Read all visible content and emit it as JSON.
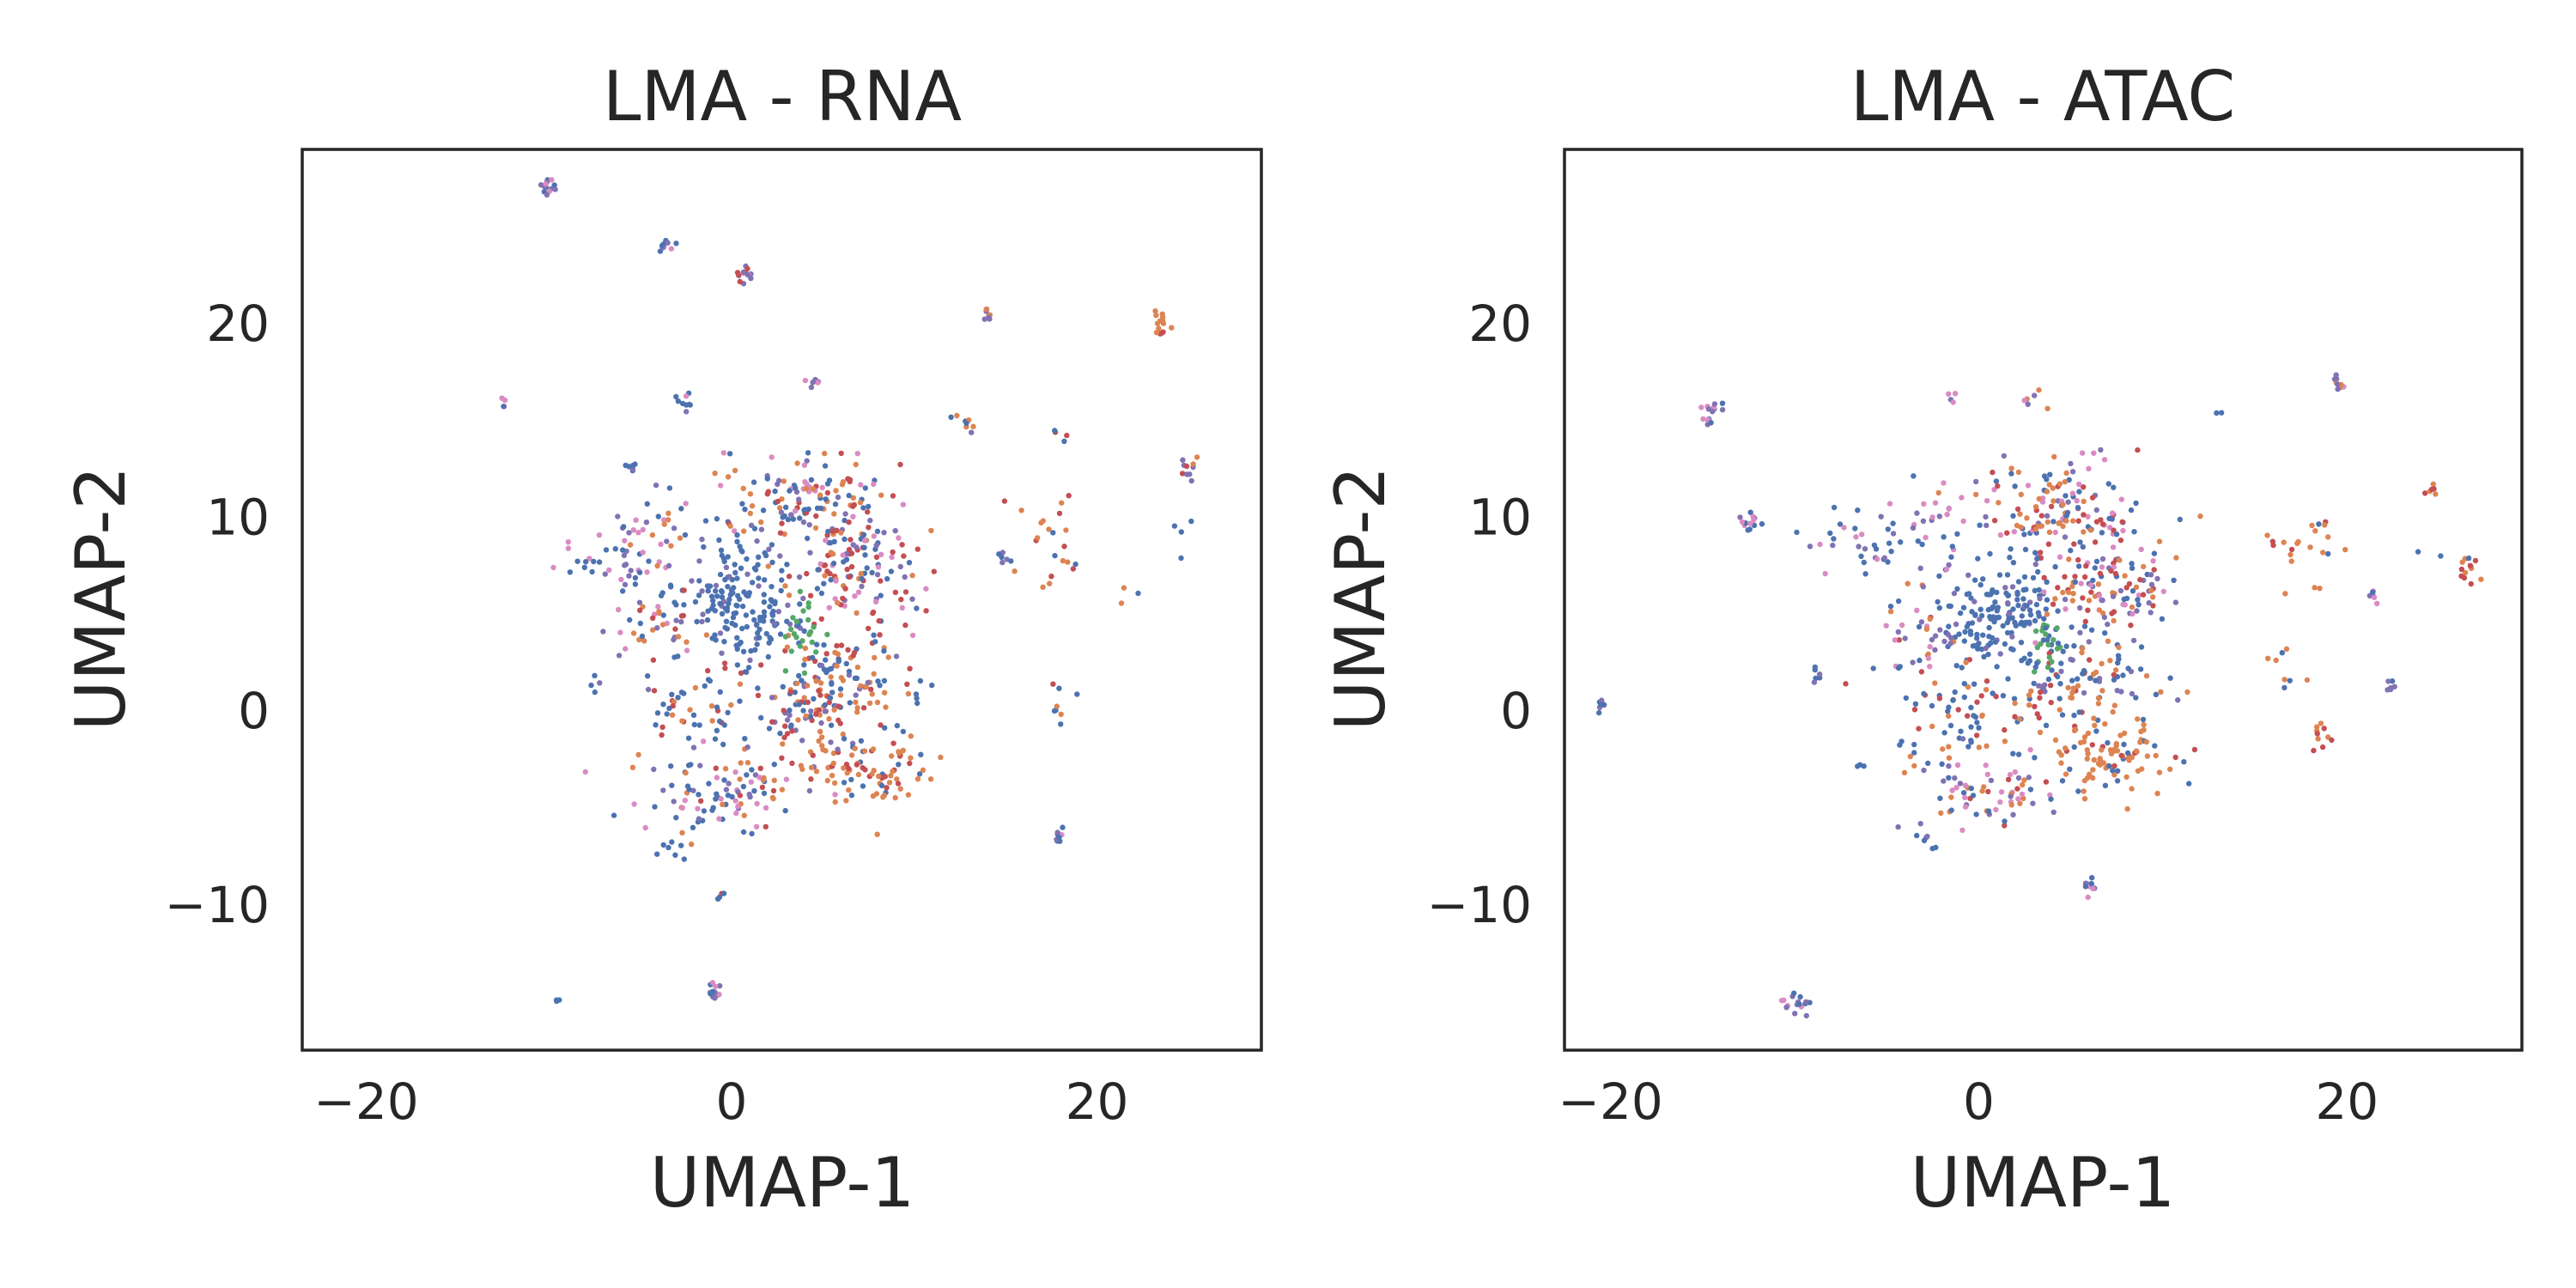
{
  "figure": {
    "background": "#ffffff",
    "frame_color": "#262626"
  },
  "cluster_colors": [
    "#4c72b0",
    "#dd8452",
    "#55a868",
    "#c44e52",
    "#8172b3",
    "#da8bc3"
  ],
  "chart_data": [
    {
      "type": "scatter",
      "title": "LMA - RNA",
      "xlabel": "UMAP-1",
      "ylabel": "UMAP-2",
      "xlim": [
        -23.5,
        29
      ],
      "ylim": [
        -17.5,
        29
      ],
      "xticks": [
        {
          "value": -20,
          "label": "−20"
        },
        {
          "value": 0,
          "label": "0"
        },
        {
          "value": 20,
          "label": "20"
        }
      ],
      "yticks": [
        {
          "value": -10,
          "label": "−10"
        },
        {
          "value": 0,
          "label": "0"
        },
        {
          "value": 10,
          "label": "10"
        },
        {
          "value": 20,
          "label": "20"
        }
      ],
      "grid": false,
      "legend": null,
      "clusters": [
        {
          "x": 0.5,
          "y": 5.5,
          "sx": 1.6,
          "sy": 1.6,
          "n": 170,
          "colors": [
            0,
            0,
            0,
            0,
            0,
            0,
            4
          ]
        },
        {
          "x": 4.0,
          "y": 10.5,
          "sx": 2.4,
          "sy": 1.3,
          "n": 150,
          "colors": [
            1,
            1,
            0,
            0,
            3,
            4,
            5
          ]
        },
        {
          "x": 7.0,
          "y": 7.0,
          "sx": 1.8,
          "sy": 1.4,
          "n": 120,
          "colors": [
            1,
            3,
            3,
            4,
            5,
            0
          ]
        },
        {
          "x": 6.0,
          "y": 1.5,
          "sx": 1.8,
          "sy": 1.3,
          "n": 110,
          "colors": [
            1,
            1,
            3,
            0,
            0,
            4
          ]
        },
        {
          "x": 7.5,
          "y": -3.0,
          "sx": 1.8,
          "sy": 1.0,
          "n": 90,
          "colors": [
            1,
            1,
            1,
            1,
            3,
            0
          ]
        },
        {
          "x": 3.5,
          "y": 0.0,
          "sx": 1.2,
          "sy": 1.2,
          "n": 60,
          "colors": [
            0,
            1,
            3,
            4
          ]
        },
        {
          "x": -1.5,
          "y": 0.5,
          "sx": 1.5,
          "sy": 1.2,
          "n": 50,
          "colors": [
            0,
            0,
            0,
            1,
            3
          ]
        },
        {
          "x": -2.0,
          "y": -4.5,
          "sx": 2.0,
          "sy": 1.3,
          "n": 60,
          "colors": [
            0,
            0,
            1,
            4,
            5
          ]
        },
        {
          "x": 1.5,
          "y": -4.0,
          "sx": 1.6,
          "sy": 1.0,
          "n": 45,
          "colors": [
            0,
            1,
            3,
            4,
            5
          ]
        },
        {
          "x": 4.0,
          "y": 4.0,
          "sx": 0.5,
          "sy": 0.9,
          "n": 28,
          "colors": [
            2,
            2,
            2,
            0
          ]
        },
        {
          "x": -4.0,
          "y": 4.5,
          "sx": 1.5,
          "sy": 1.5,
          "n": 50,
          "colors": [
            0,
            1,
            4,
            5,
            3
          ]
        },
        {
          "x": -6.5,
          "y": 8.0,
          "sx": 1.5,
          "sy": 1.2,
          "n": 35,
          "colors": [
            0,
            0,
            4,
            5
          ]
        },
        {
          "x": -4.0,
          "y": 9.5,
          "sx": 1.2,
          "sy": 1.3,
          "n": 25,
          "colors": [
            0,
            1,
            4,
            5
          ]
        },
        {
          "x": 17.5,
          "y": 9.0,
          "sx": 1.2,
          "sy": 1.2,
          "n": 22,
          "colors": [
            1,
            1,
            3,
            0
          ]
        },
        {
          "x": -10.0,
          "y": 27.0,
          "sx": 0.25,
          "sy": 0.25,
          "n": 14,
          "colors": [
            4,
            5,
            0
          ]
        },
        {
          "x": -3.5,
          "y": 24.0,
          "sx": 0.2,
          "sy": 0.2,
          "n": 10,
          "colors": [
            0,
            4,
            5
          ]
        },
        {
          "x": 0.8,
          "y": 22.5,
          "sx": 0.25,
          "sy": 0.25,
          "n": 14,
          "colors": [
            5,
            4,
            3
          ]
        },
        {
          "x": 14.0,
          "y": 20.5,
          "sx": 0.2,
          "sy": 0.2,
          "n": 8,
          "colors": [
            1,
            4
          ]
        },
        {
          "x": 23.5,
          "y": 20.0,
          "sx": 0.3,
          "sy": 0.3,
          "n": 14,
          "colors": [
            1,
            1,
            3
          ]
        },
        {
          "x": -2.5,
          "y": 16.0,
          "sx": 0.2,
          "sy": 0.2,
          "n": 9,
          "colors": [
            4,
            5,
            0
          ]
        },
        {
          "x": 4.5,
          "y": 17.0,
          "sx": 0.2,
          "sy": 0.2,
          "n": 7,
          "colors": [
            4,
            5,
            1
          ]
        },
        {
          "x": 12.5,
          "y": 15.0,
          "sx": 0.4,
          "sy": 0.3,
          "n": 8,
          "colors": [
            1,
            0,
            4
          ]
        },
        {
          "x": 25.0,
          "y": 12.5,
          "sx": 0.3,
          "sy": 0.4,
          "n": 10,
          "colors": [
            1,
            4,
            3
          ]
        },
        {
          "x": -5.5,
          "y": 12.5,
          "sx": 0.2,
          "sy": 0.2,
          "n": 6,
          "colors": [
            0,
            4
          ]
        },
        {
          "x": -1.0,
          "y": -14.5,
          "sx": 0.25,
          "sy": 0.25,
          "n": 12,
          "colors": [
            0,
            4,
            5
          ]
        },
        {
          "x": 18.0,
          "y": -6.5,
          "sx": 0.2,
          "sy": 0.25,
          "n": 9,
          "colors": [
            0,
            4,
            5
          ]
        },
        {
          "x": 18.0,
          "y": 0.5,
          "sx": 0.4,
          "sy": 0.8,
          "n": 8,
          "colors": [
            0,
            1,
            3
          ]
        },
        {
          "x": -12.5,
          "y": 16.0,
          "sx": 0.15,
          "sy": 0.3,
          "n": 4,
          "colors": [
            5,
            0
          ]
        },
        {
          "x": 15.0,
          "y": 8.0,
          "sx": 0.4,
          "sy": 0.3,
          "n": 6,
          "colors": [
            0,
            4
          ]
        },
        {
          "x": -0.5,
          "y": -9.5,
          "sx": 0.2,
          "sy": 0.2,
          "n": 4,
          "colors": [
            0,
            3
          ]
        },
        {
          "x": -9.5,
          "y": -15.0,
          "sx": 0.15,
          "sy": 0.15,
          "n": 3,
          "colors": [
            0
          ]
        },
        {
          "x": 21.5,
          "y": 6.0,
          "sx": 0.4,
          "sy": 0.3,
          "n": 3,
          "colors": [
            1,
            0
          ]
        },
        {
          "x": 24.5,
          "y": 9.5,
          "sx": 1.0,
          "sy": 0.8,
          "n": 4,
          "colors": [
            0
          ]
        },
        {
          "x": 10.5,
          "y": 1.0,
          "sx": 0.4,
          "sy": 0.6,
          "n": 5,
          "colors": [
            0
          ]
        },
        {
          "x": 18.0,
          "y": 14.0,
          "sx": 0.2,
          "sy": 0.3,
          "n": 4,
          "colors": [
            3,
            0
          ]
        },
        {
          "x": -7.5,
          "y": 1.5,
          "sx": 0.3,
          "sy": 0.3,
          "n": 4,
          "colors": [
            0,
            4
          ]
        },
        {
          "x": -3.0,
          "y": -7.0,
          "sx": 0.5,
          "sy": 0.4,
          "n": 5,
          "colors": [
            3,
            0
          ]
        }
      ]
    },
    {
      "type": "scatter",
      "title": "LMA - ATAC",
      "xlabel": "UMAP-1",
      "ylabel": "UMAP-2",
      "xlim": [
        -22.5,
        29.5
      ],
      "ylim": [
        -17.5,
        29
      ],
      "xticks": [
        {
          "value": -20,
          "label": "−20"
        },
        {
          "value": 0,
          "label": "0"
        },
        {
          "value": 20,
          "label": "20"
        }
      ],
      "yticks": [
        {
          "value": -10,
          "label": "−10"
        },
        {
          "value": 0,
          "label": "0"
        },
        {
          "value": 10,
          "label": "10"
        },
        {
          "value": 20,
          "label": "20"
        }
      ],
      "grid": false,
      "legend": null,
      "clusters": [
        {
          "x": 1.0,
          "y": 5.0,
          "sx": 1.6,
          "sy": 1.5,
          "n": 170,
          "colors": [
            0,
            0,
            0,
            0,
            0,
            0,
            4
          ]
        },
        {
          "x": 4.5,
          "y": 10.5,
          "sx": 2.4,
          "sy": 1.3,
          "n": 150,
          "colors": [
            1,
            1,
            0,
            0,
            3,
            4,
            5
          ]
        },
        {
          "x": 7.0,
          "y": 6.5,
          "sx": 1.9,
          "sy": 1.4,
          "n": 120,
          "colors": [
            1,
            3,
            3,
            4,
            5,
            0
          ]
        },
        {
          "x": 5.5,
          "y": 1.5,
          "sx": 1.8,
          "sy": 1.3,
          "n": 110,
          "colors": [
            1,
            1,
            3,
            0,
            0,
            4
          ]
        },
        {
          "x": 7.5,
          "y": -2.5,
          "sx": 1.8,
          "sy": 0.9,
          "n": 90,
          "colors": [
            1,
            1,
            1,
            1,
            3,
            0
          ]
        },
        {
          "x": -1.0,
          "y": 0.0,
          "sx": 1.6,
          "sy": 1.3,
          "n": 55,
          "colors": [
            0,
            0,
            0,
            1,
            3
          ]
        },
        {
          "x": 1.5,
          "y": -4.0,
          "sx": 1.5,
          "sy": 1.0,
          "n": 45,
          "colors": [
            0,
            1,
            3,
            4,
            5
          ]
        },
        {
          "x": -2.0,
          "y": -4.0,
          "sx": 1.4,
          "sy": 1.3,
          "n": 40,
          "colors": [
            0,
            0,
            1,
            4,
            5
          ]
        },
        {
          "x": 3.8,
          "y": 3.8,
          "sx": 0.4,
          "sy": 0.8,
          "n": 26,
          "colors": [
            2,
            2,
            2,
            0
          ]
        },
        {
          "x": -3.5,
          "y": 4.0,
          "sx": 1.3,
          "sy": 1.3,
          "n": 40,
          "colors": [
            0,
            1,
            4,
            5,
            3
          ]
        },
        {
          "x": -6.5,
          "y": 8.5,
          "sx": 1.8,
          "sy": 1.0,
          "n": 35,
          "colors": [
            0,
            0,
            4,
            5
          ]
        },
        {
          "x": -2.5,
          "y": 10.0,
          "sx": 1.0,
          "sy": 1.0,
          "n": 20,
          "colors": [
            0,
            4,
            5
          ]
        },
        {
          "x": 17.5,
          "y": 8.5,
          "sx": 1.3,
          "sy": 1.3,
          "n": 22,
          "colors": [
            1,
            1,
            3,
            0
          ]
        },
        {
          "x": -14.5,
          "y": 15.5,
          "sx": 0.3,
          "sy": 0.3,
          "n": 16,
          "colors": [
            4,
            5,
            0
          ]
        },
        {
          "x": -12.5,
          "y": 9.8,
          "sx": 0.25,
          "sy": 0.25,
          "n": 14,
          "colors": [
            4,
            5,
            0
          ]
        },
        {
          "x": -20.5,
          "y": 0.2,
          "sx": 0.15,
          "sy": 0.2,
          "n": 8,
          "colors": [
            0,
            4
          ]
        },
        {
          "x": -10.0,
          "y": -15.0,
          "sx": 0.35,
          "sy": 0.35,
          "n": 16,
          "colors": [
            0,
            4,
            5
          ]
        },
        {
          "x": 19.5,
          "y": 17.0,
          "sx": 0.2,
          "sy": 0.4,
          "n": 9,
          "colors": [
            1,
            4,
            5
          ]
        },
        {
          "x": 26.5,
          "y": 7.5,
          "sx": 0.3,
          "sy": 0.4,
          "n": 12,
          "colors": [
            1,
            1,
            3
          ]
        },
        {
          "x": 24.5,
          "y": 11.5,
          "sx": 0.2,
          "sy": 0.2,
          "n": 6,
          "colors": [
            1,
            3
          ]
        },
        {
          "x": 21.5,
          "y": 6.0,
          "sx": 0.2,
          "sy": 0.2,
          "n": 6,
          "colors": [
            0,
            4,
            5
          ]
        },
        {
          "x": 22.5,
          "y": 1.3,
          "sx": 0.2,
          "sy": 0.2,
          "n": 6,
          "colors": [
            0,
            4
          ]
        },
        {
          "x": 18.5,
          "y": -1.0,
          "sx": 0.3,
          "sy": 0.6,
          "n": 10,
          "colors": [
            1,
            1,
            3
          ]
        },
        {
          "x": 6.0,
          "y": -9.0,
          "sx": 0.2,
          "sy": 0.25,
          "n": 9,
          "colors": [
            0,
            4,
            5
          ]
        },
        {
          "x": -9.0,
          "y": 2.0,
          "sx": 0.2,
          "sy": 0.3,
          "n": 6,
          "colors": [
            0,
            4
          ]
        },
        {
          "x": 3.0,
          "y": 16.0,
          "sx": 0.4,
          "sy": 0.3,
          "n": 6,
          "colors": [
            4,
            5,
            1
          ]
        },
        {
          "x": -1.5,
          "y": 16.3,
          "sx": 0.2,
          "sy": 0.2,
          "n": 4,
          "colors": [
            4,
            5
          ]
        },
        {
          "x": 16.0,
          "y": 3.0,
          "sx": 0.5,
          "sy": 0.4,
          "n": 4,
          "colors": [
            1,
            0
          ]
        },
        {
          "x": 13.0,
          "y": 15.3,
          "sx": 0.1,
          "sy": 0.1,
          "n": 2,
          "colors": [
            0
          ]
        },
        {
          "x": -3.0,
          "y": -6.5,
          "sx": 0.3,
          "sy": 0.3,
          "n": 4,
          "colors": [
            0,
            4
          ]
        },
        {
          "x": -6.5,
          "y": -3.0,
          "sx": 0.2,
          "sy": 0.2,
          "n": 3,
          "colors": [
            0
          ]
        },
        {
          "x": 25.5,
          "y": 8.5,
          "sx": 0.6,
          "sy": 0.5,
          "n": 3,
          "colors": [
            0
          ]
        },
        {
          "x": 17.0,
          "y": 1.5,
          "sx": 0.4,
          "sy": 0.5,
          "n": 4,
          "colors": [
            0,
            1
          ]
        }
      ]
    }
  ]
}
